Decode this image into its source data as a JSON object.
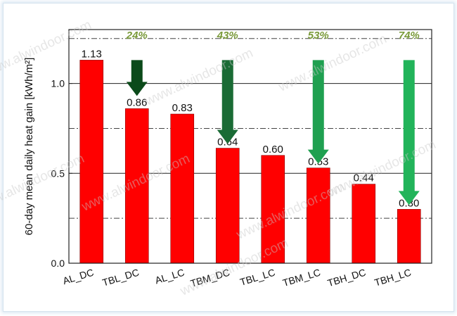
{
  "chart_data": {
    "type": "bar",
    "ylabel": "60-day mean daily heat gain [kWh/m²]",
    "ylim": [
      0,
      1.3
    ],
    "yticks": [
      0.0,
      0.5,
      1.0
    ],
    "yticks_text": [
      "0.0",
      "0.5",
      "1.0"
    ],
    "grid": "horizontal",
    "categories": [
      "AL_DC",
      "TBL_DC",
      "AL_LC",
      "TBM_DC",
      "TBL_LC",
      "TBM_LC",
      "TBH_DC",
      "TBH_LC"
    ],
    "values": [
      1.13,
      0.86,
      0.83,
      0.64,
      0.6,
      0.53,
      0.44,
      0.3
    ],
    "value_labels": [
      "1.13",
      "0.86",
      "0.83",
      "0.64",
      "0.60",
      "0.53",
      "0.44",
      "0.30"
    ],
    "bar_color": "#ff0000",
    "annotations": [
      {
        "text": "24%",
        "from": 1.13,
        "to": 0.86,
        "bar_index": 1,
        "arrow_color": "#0b4a1a"
      },
      {
        "text": "43%",
        "from": 1.13,
        "to": 0.64,
        "bar_index": 3,
        "arrow_color": "#1a6b35"
      },
      {
        "text": "53%",
        "from": 1.13,
        "to": 0.53,
        "bar_index": 5,
        "arrow_color": "#1fa050"
      },
      {
        "text": "74%",
        "from": 1.13,
        "to": 0.3,
        "bar_index": 7,
        "arrow_color": "#22b45a"
      }
    ]
  },
  "watermark": "www.alwindoor.com"
}
